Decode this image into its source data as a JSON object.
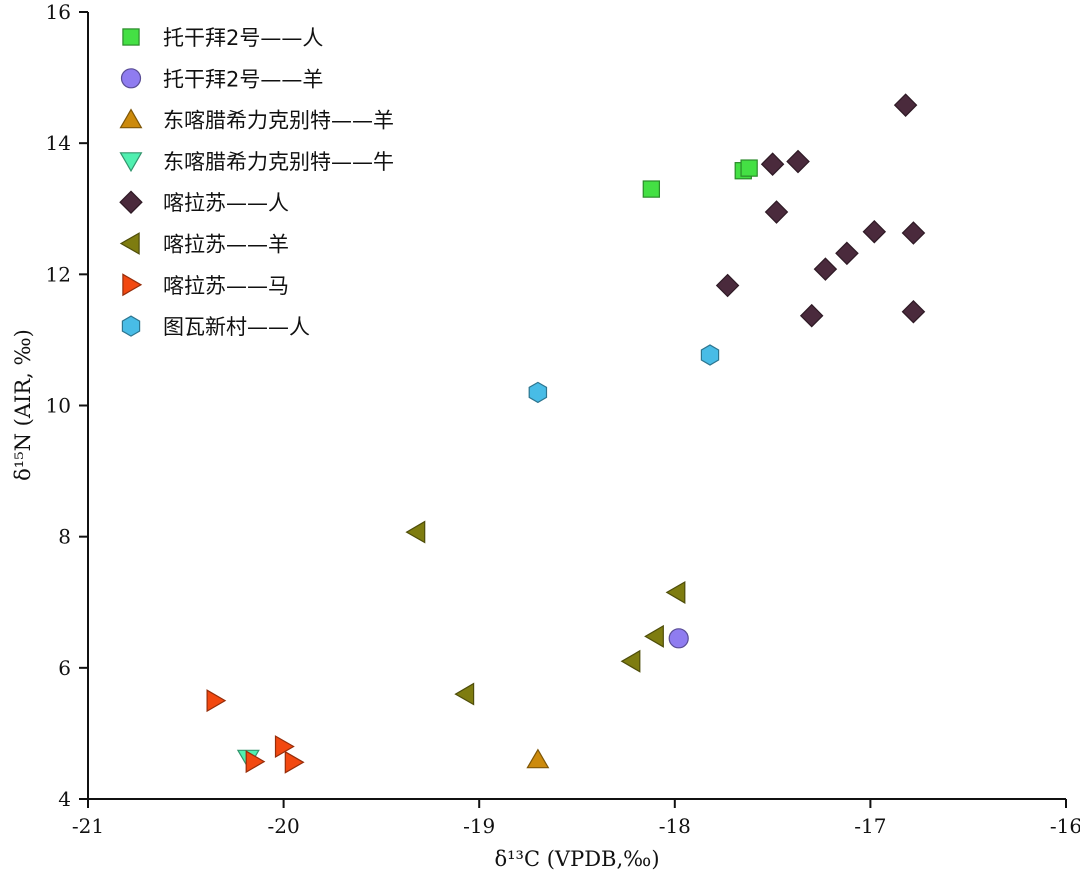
{
  "chart_data": {
    "type": "scatter",
    "title": "",
    "xlabel": "δ¹³C (VPDB,‰)",
    "ylabel": "δ¹⁵N (AIR, ‰)",
    "xlim": [
      -21,
      -16
    ],
    "ylim": [
      4,
      16
    ],
    "xticks": [
      -21,
      -20,
      -19,
      -18,
      -17,
      -16
    ],
    "yticks": [
      4,
      6,
      8,
      10,
      12,
      14,
      16
    ],
    "grid": false,
    "legend_position": "top-left",
    "series": [
      {
        "name": "托干拜2号——人",
        "marker": "square",
        "color": "#44e044",
        "points": [
          [
            -18.12,
            13.3
          ],
          [
            -17.65,
            13.58
          ],
          [
            -17.62,
            13.62
          ]
        ]
      },
      {
        "name": "托干拜2号——羊",
        "marker": "circle",
        "color": "#8f7cf0",
        "points": [
          [
            -17.98,
            6.45
          ]
        ]
      },
      {
        "name": "东喀腊希力克别特——羊",
        "marker": "triangle-up",
        "color": "#cc8a0c",
        "points": [
          [
            -18.7,
            4.6
          ]
        ]
      },
      {
        "name": "东喀腊希力克别特——牛",
        "marker": "triangle-down",
        "color": "#50f0b0",
        "points": [
          [
            -20.18,
            4.62
          ]
        ]
      },
      {
        "name": "喀拉苏——人",
        "marker": "diamond",
        "color": "#4a2a3c",
        "points": [
          [
            -16.82,
            14.58
          ],
          [
            -17.5,
            13.68
          ],
          [
            -17.37,
            13.72
          ],
          [
            -17.48,
            12.95
          ],
          [
            -16.98,
            12.65
          ],
          [
            -16.78,
            12.63
          ],
          [
            -17.12,
            12.32
          ],
          [
            -17.23,
            12.08
          ],
          [
            -17.73,
            11.83
          ],
          [
            -17.3,
            11.37
          ],
          [
            -16.78,
            11.43
          ]
        ]
      },
      {
        "name": "喀拉苏——羊",
        "marker": "triangle-left",
        "color": "#7e7c10",
        "points": [
          [
            -19.32,
            8.07
          ],
          [
            -17.99,
            7.15
          ],
          [
            -18.1,
            6.48
          ],
          [
            -18.22,
            6.1
          ],
          [
            -19.07,
            5.6
          ]
        ]
      },
      {
        "name": "喀拉苏——马",
        "marker": "triangle-right",
        "color": "#f24810",
        "points": [
          [
            -20.35,
            5.5
          ],
          [
            -20.0,
            4.8
          ],
          [
            -20.15,
            4.57
          ],
          [
            -19.95,
            4.56
          ]
        ]
      },
      {
        "name": "图瓦新村——人",
        "marker": "hexagon",
        "color": "#48bce6",
        "points": [
          [
            -17.82,
            10.77
          ],
          [
            -18.7,
            10.2
          ]
        ]
      }
    ]
  }
}
